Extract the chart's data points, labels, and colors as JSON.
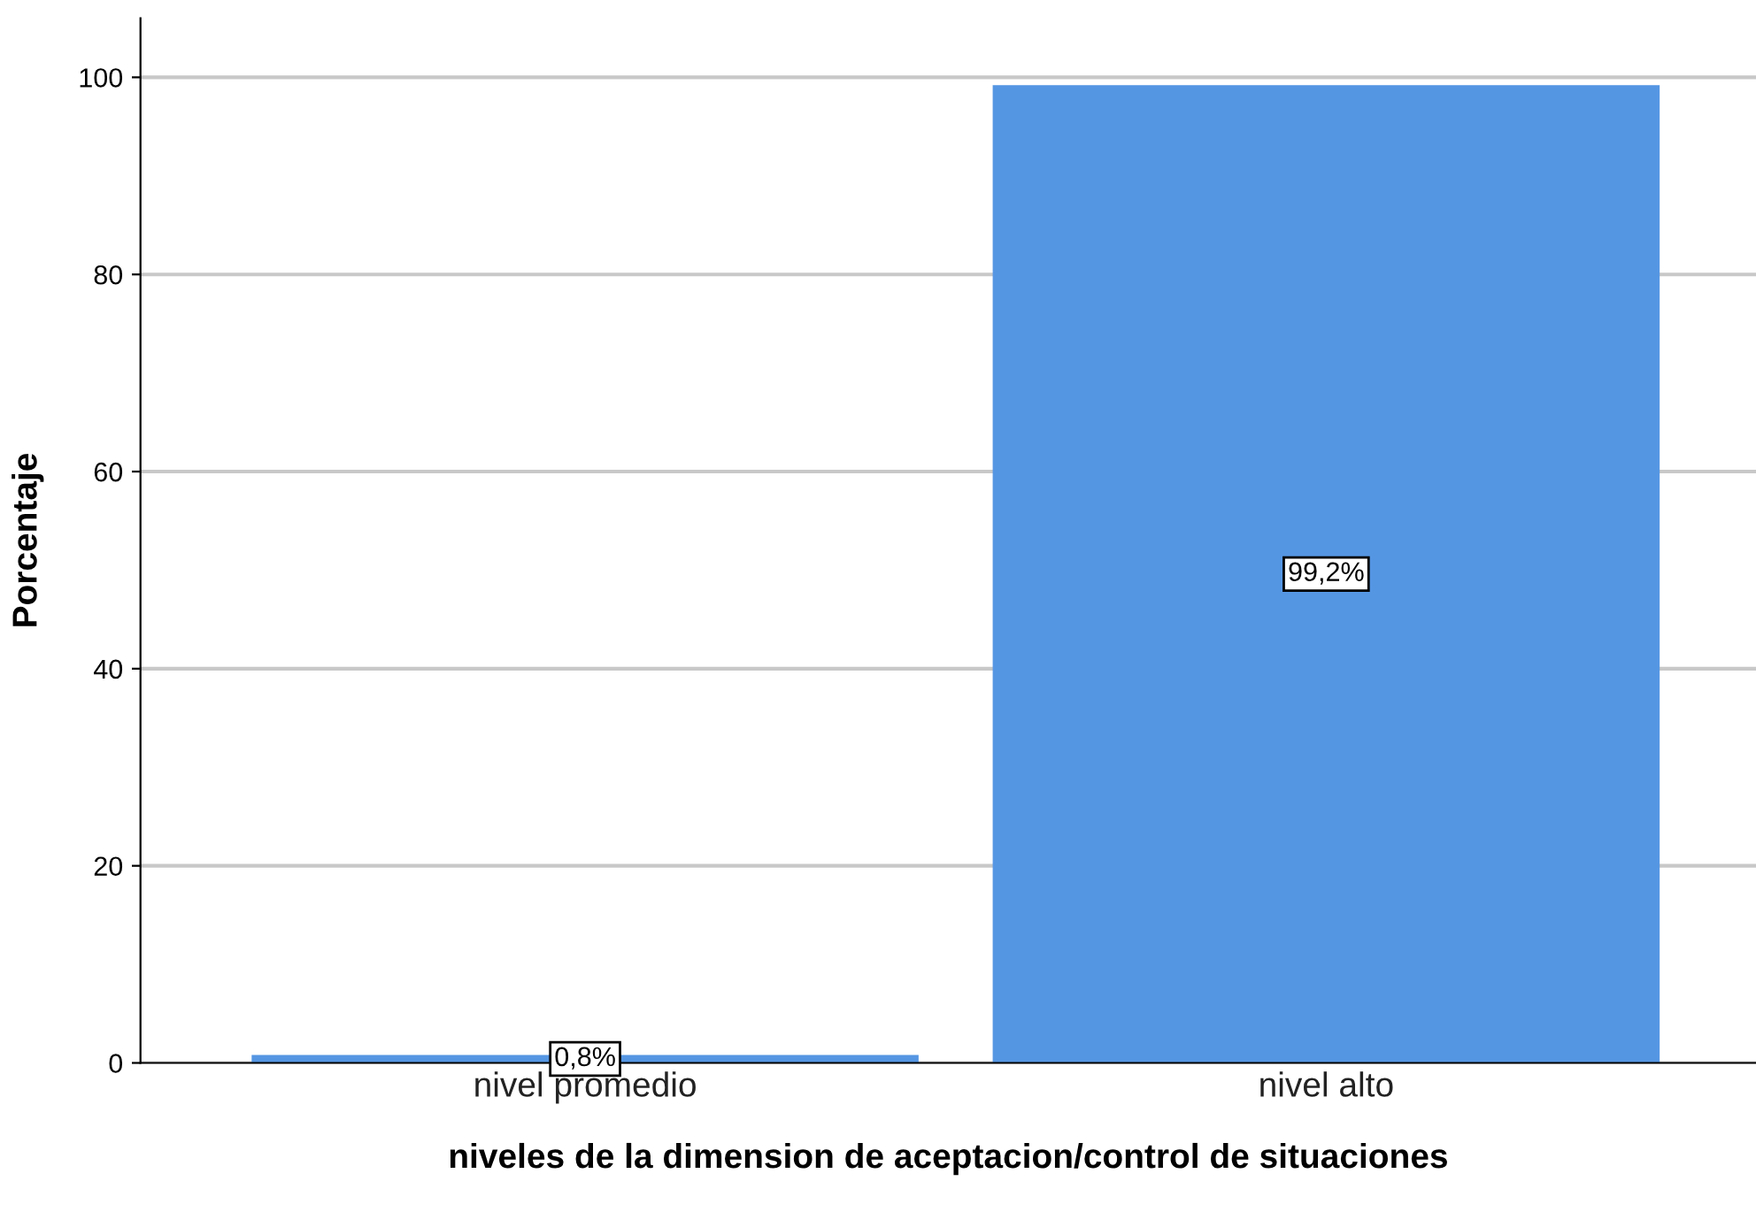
{
  "chart_data": {
    "type": "bar",
    "xlabel": "niveles de la dimension de aceptacion/control de situaciones",
    "ylabel": "Porcentaje",
    "categories": [
      "nivel promedio",
      "nivel alto"
    ],
    "values": [
      0.8,
      99.2
    ],
    "value_labels": [
      "0,8%",
      "99,2%"
    ],
    "color": "#5596e3",
    "ylim": [
      0,
      106
    ],
    "yticks": [
      0,
      20,
      40,
      60,
      80,
      100
    ],
    "grid": "y"
  }
}
